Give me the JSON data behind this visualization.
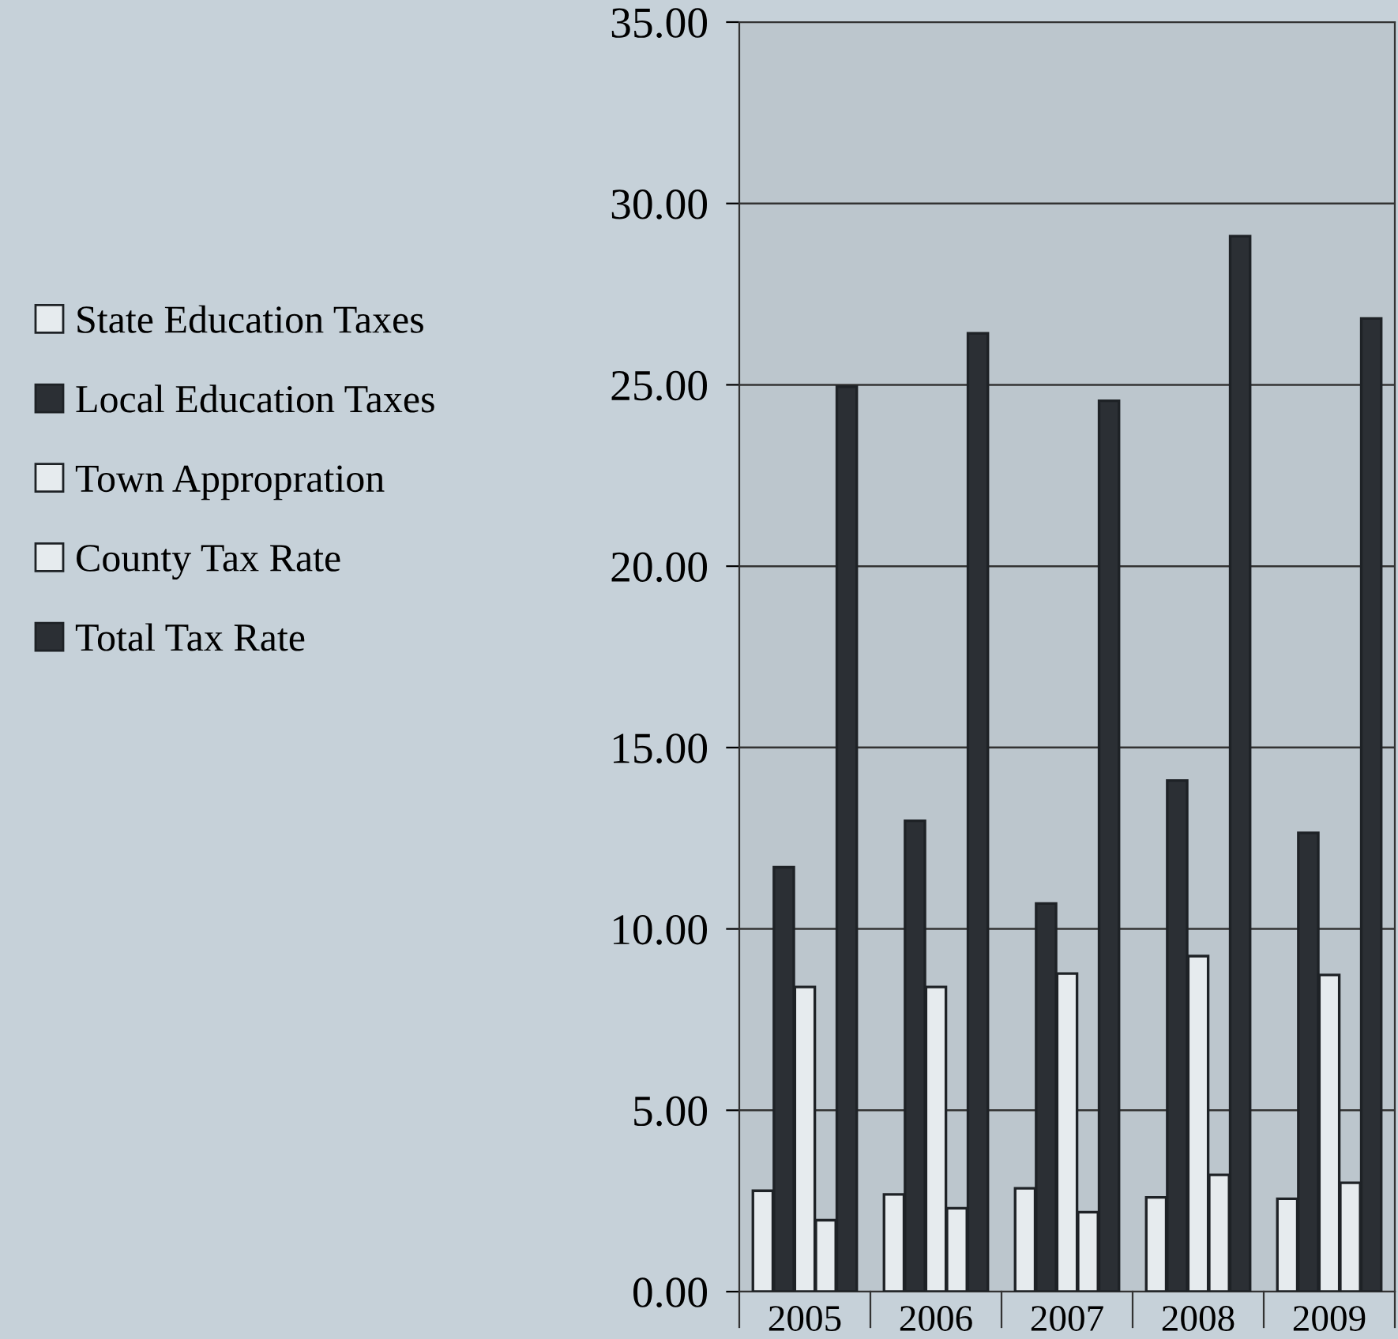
{
  "chart_data": {
    "type": "bar",
    "categories": [
      "2005",
      "2006",
      "2007",
      "2008",
      "2009"
    ],
    "series": [
      {
        "name": "State Education Taxes",
        "color": "#e6ebee",
        "values": [
          2.78,
          2.68,
          2.85,
          2.6,
          2.56
        ]
      },
      {
        "name": "Local Education Taxes",
        "color": "#2b2f34",
        "values": [
          11.7,
          12.98,
          10.7,
          14.09,
          12.65
        ]
      },
      {
        "name": "Town Appropration",
        "color": "#e6ebee",
        "values": [
          8.4,
          8.4,
          8.77,
          9.25,
          8.73
        ]
      },
      {
        "name": "County Tax Rate",
        "color": "#e6ebee",
        "values": [
          1.97,
          2.3,
          2.19,
          3.22,
          3.0
        ]
      },
      {
        "name": "Total Tax Rate",
        "color": "#2b2f34",
        "values": [
          24.95,
          26.42,
          24.56,
          29.1,
          26.83
        ]
      }
    ],
    "ylim": [
      0,
      35
    ],
    "yticks": [
      {
        "value": 0,
        "label": "0.00"
      },
      {
        "value": 5,
        "label": "5.00"
      },
      {
        "value": 10,
        "label": "10.00"
      },
      {
        "value": 15,
        "label": "15.00"
      },
      {
        "value": 20,
        "label": "20.00"
      },
      {
        "value": 25,
        "label": "25.00"
      },
      {
        "value": 30,
        "label": "30.00"
      },
      {
        "value": 35,
        "label": "35.00"
      }
    ],
    "grid": "y",
    "legend": "left"
  }
}
